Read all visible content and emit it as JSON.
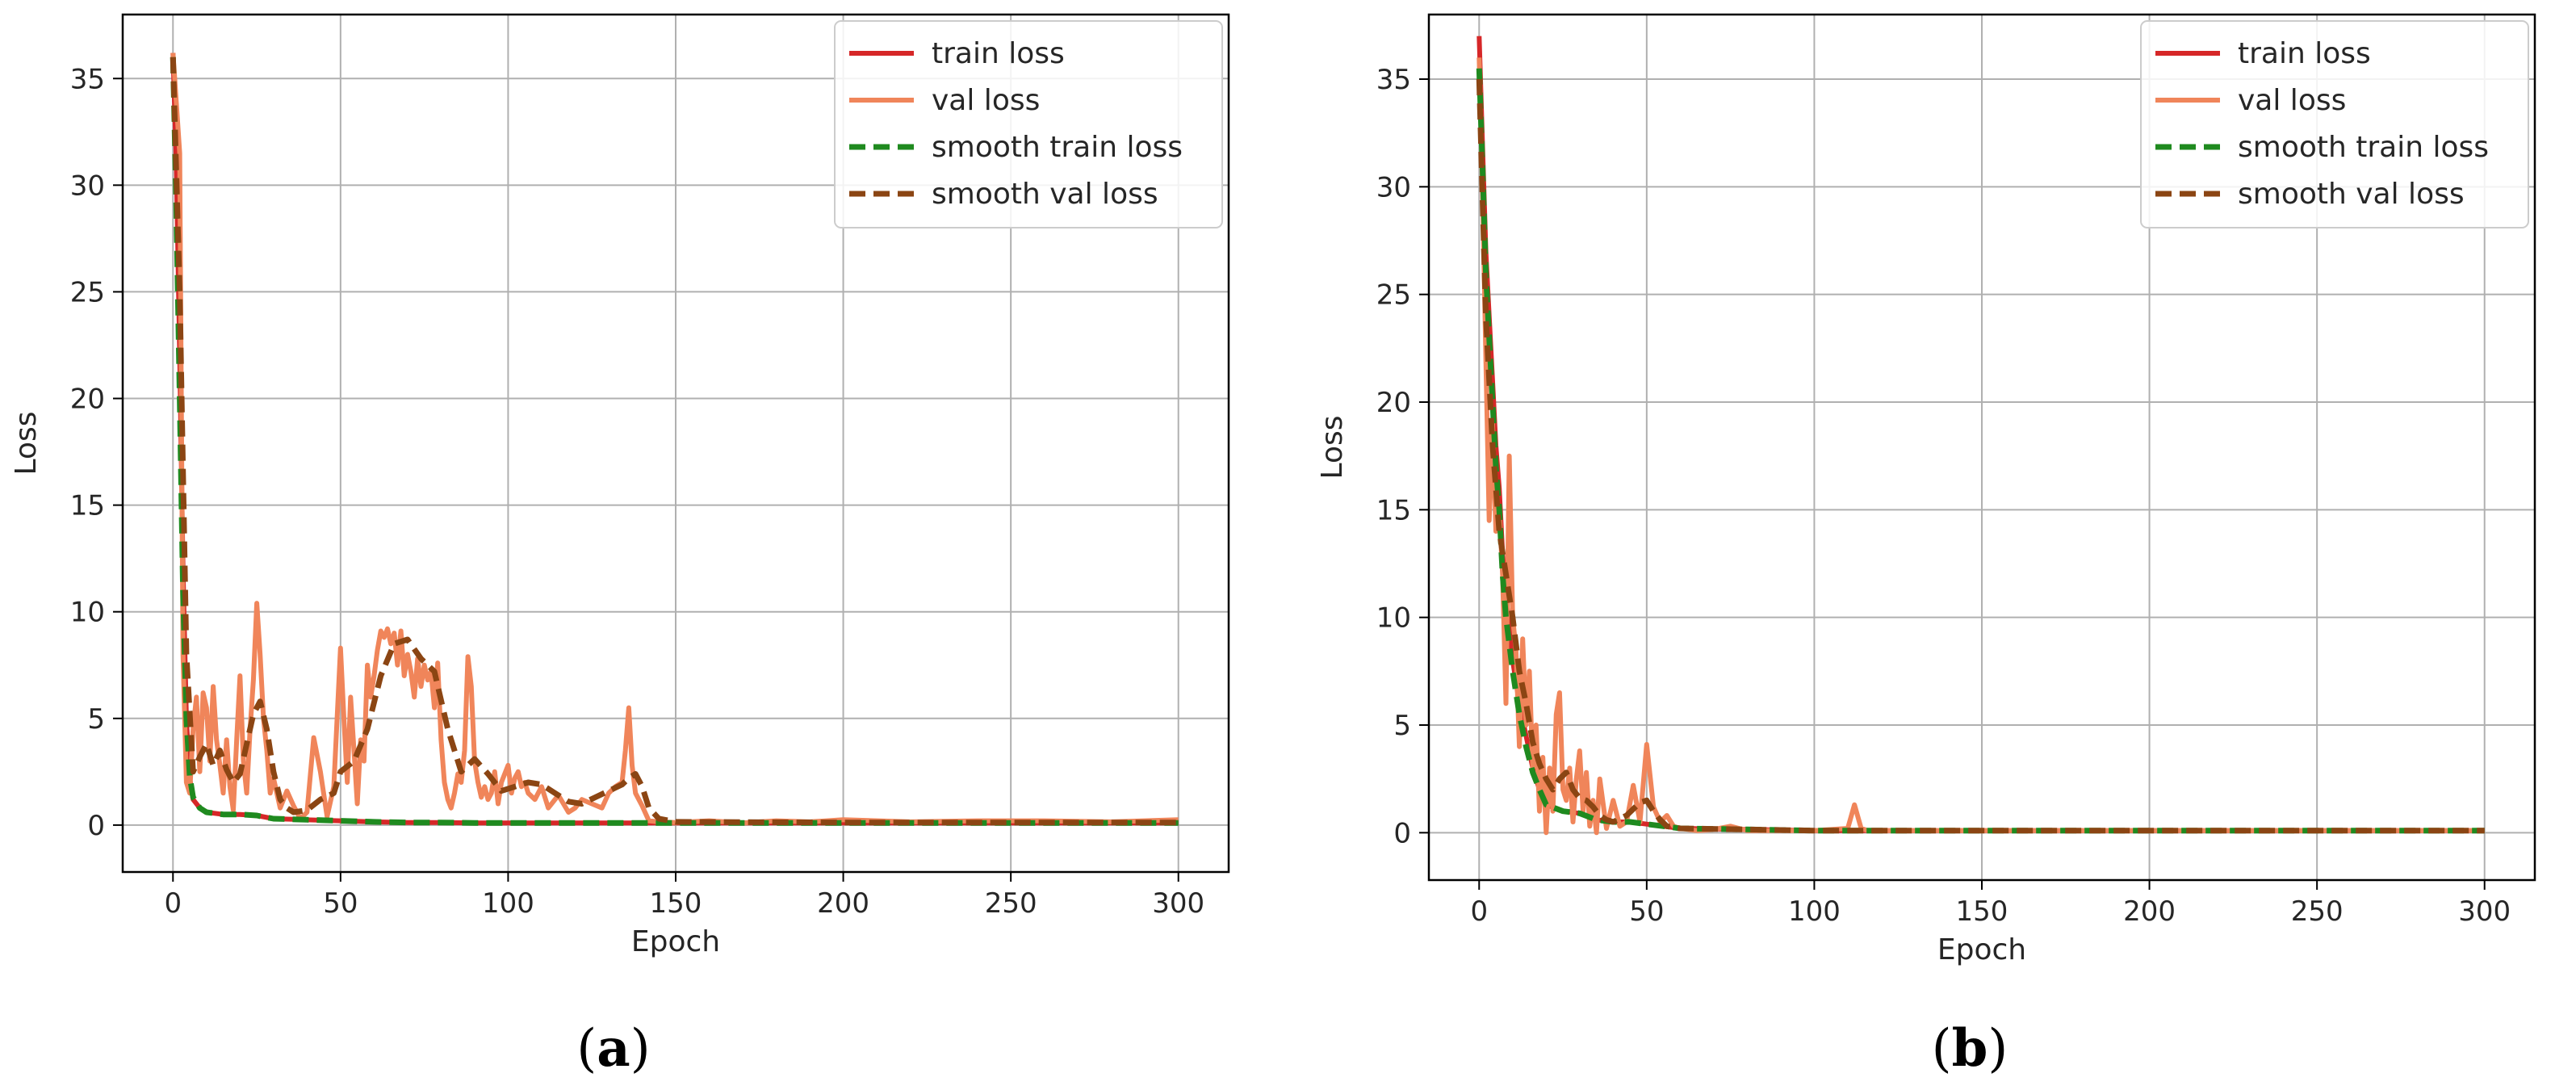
{
  "figure": {
    "captions": [
      "(a)",
      "(b)"
    ],
    "caption_letters": [
      "a",
      "b"
    ]
  },
  "chart_data": [
    {
      "type": "line",
      "panel": "(a)",
      "xlabel": "Epoch",
      "ylabel": "Loss",
      "xlim": [
        -15,
        315
      ],
      "ylim": [
        -2.2,
        38
      ],
      "xticks": [
        0,
        50,
        100,
        150,
        200,
        250,
        300
      ],
      "yticks": [
        0,
        5,
        10,
        15,
        20,
        25,
        30,
        35
      ],
      "grid": true,
      "legend_placement": "top-right",
      "series": [
        {
          "name": "train loss",
          "color": "#d62728",
          "style": "solid",
          "x": [
            0,
            1,
            2,
            3,
            4,
            5,
            6,
            8,
            10,
            15,
            20,
            25,
            30,
            40,
            50,
            60,
            70,
            80,
            90,
            100,
            120,
            140,
            150,
            200,
            250,
            300
          ],
          "y": [
            36.2,
            31,
            22,
            12,
            5,
            2.2,
            1.2,
            0.8,
            0.6,
            0.5,
            0.5,
            0.45,
            0.3,
            0.25,
            0.2,
            0.15,
            0.12,
            0.12,
            0.1,
            0.1,
            0.1,
            0.1,
            0.1,
            0.1,
            0.1,
            0.1
          ]
        },
        {
          "name": "val loss",
          "color": "#f0855a",
          "style": "solid",
          "x": [
            0,
            2,
            3,
            4,
            5,
            6,
            7,
            8,
            9,
            10,
            11,
            12,
            13,
            14,
            15,
            16,
            17,
            18,
            19,
            20,
            21,
            22,
            23,
            24,
            25,
            26,
            27,
            28,
            29,
            30,
            32,
            34,
            36,
            38,
            40,
            42,
            44,
            46,
            48,
            50,
            51,
            52,
            53,
            54,
            55,
            56,
            57,
            58,
            59,
            60,
            61,
            62,
            63,
            64,
            65,
            66,
            67,
            68,
            69,
            70,
            71,
            72,
            73,
            74,
            75,
            76,
            77,
            78,
            79,
            80,
            81,
            82,
            83,
            84,
            85,
            86,
            87,
            88,
            89,
            90,
            91,
            92,
            93,
            94,
            95,
            96,
            97,
            98,
            100,
            101,
            102,
            103,
            104,
            105,
            106,
            108,
            110,
            112,
            115,
            118,
            120,
            122,
            125,
            128,
            130,
            132,
            134,
            135,
            136,
            137,
            138,
            140,
            142,
            145,
            150,
            160,
            170,
            180,
            190,
            200,
            220,
            240,
            260,
            280,
            300
          ],
          "y": [
            36.2,
            31.5,
            8,
            2,
            1.5,
            4.5,
            6,
            2.5,
            6.2,
            5.5,
            3,
            6.5,
            4,
            2.8,
            1.5,
            4,
            1.8,
            0.7,
            4,
            7,
            3,
            1.5,
            4.5,
            6.8,
            10.4,
            8,
            5,
            3.5,
            1.5,
            2.2,
            0.8,
            1.6,
            0.9,
            0.3,
            0.6,
            4.1,
            2.5,
            0.4,
            1.8,
            8.3,
            5,
            2,
            6,
            3.5,
            1,
            4,
            3,
            7.5,
            6,
            7,
            8.2,
            9.1,
            8.8,
            9.2,
            8.5,
            9,
            7.5,
            9.1,
            7,
            8,
            7.2,
            6,
            7.8,
            6.5,
            7.5,
            6.8,
            7.2,
            5.5,
            7.6,
            4,
            2,
            1.2,
            0.8,
            1.5,
            2.4,
            2,
            3.5,
            7.9,
            6.5,
            3,
            2,
            1.3,
            1.8,
            1.2,
            1.5,
            2.5,
            1,
            2,
            2.8,
            1.5,
            2.2,
            2.5,
            1.8,
            2,
            1.5,
            1.2,
            1.8,
            0.8,
            1.4,
            0.6,
            0.8,
            1.2,
            1,
            0.8,
            1.5,
            1.8,
            2,
            3.5,
            5.5,
            2.8,
            1.5,
            0.9,
            0.2,
            0.15,
            0.12,
            0.2,
            0.1,
            0.2,
            0.15,
            0.25,
            0.15,
            0.2,
            0.2,
            0.15,
            0.25
          ]
        },
        {
          "name": "smooth train loss",
          "color": "#1f8a1f",
          "style": "dashed",
          "x": [
            0,
            1,
            2,
            3,
            4,
            5,
            6,
            8,
            10,
            15,
            20,
            25,
            30,
            40,
            50,
            60,
            70,
            80,
            90,
            100,
            120,
            140,
            150,
            200,
            250,
            300
          ],
          "y": [
            36,
            29,
            20,
            11,
            5,
            2.3,
            1.3,
            0.8,
            0.6,
            0.5,
            0.5,
            0.45,
            0.3,
            0.25,
            0.2,
            0.15,
            0.12,
            0.12,
            0.1,
            0.1,
            0.1,
            0.1,
            0.1,
            0.1,
            0.1,
            0.1
          ]
        },
        {
          "name": "smooth val loss",
          "color": "#8b4513",
          "style": "dashed",
          "x": [
            0,
            2,
            4,
            6,
            8,
            10,
            12,
            14,
            16,
            18,
            20,
            22,
            24,
            26,
            28,
            30,
            32,
            34,
            36,
            40,
            44,
            48,
            50,
            54,
            58,
            62,
            66,
            70,
            74,
            78,
            82,
            86,
            90,
            94,
            98,
            102,
            106,
            110,
            114,
            118,
            122,
            126,
            130,
            134,
            136,
            138,
            140,
            142,
            145,
            150,
            200,
            250,
            300
          ],
          "y": [
            36,
            25,
            8,
            2.5,
            3.2,
            3.8,
            2.8,
            3.5,
            2.6,
            2,
            2.4,
            3.8,
            5.2,
            5.8,
            4.5,
            2.5,
            1.2,
            0.8,
            0.6,
            0.7,
            1.2,
            1.5,
            2.5,
            3,
            4.5,
            7,
            8.5,
            8.7,
            7.8,
            7.2,
            4.5,
            2.5,
            3.1,
            2.4,
            1.6,
            1.8,
            2,
            1.9,
            1.5,
            1.1,
            1,
            1.3,
            1.6,
            1.9,
            2.2,
            2.4,
            1.8,
            0.8,
            0.3,
            0.15,
            0.12,
            0.12,
            0.12
          ]
        }
      ]
    },
    {
      "type": "line",
      "panel": "(b)",
      "xlabel": "Epoch",
      "ylabel": "Loss",
      "xlim": [
        -15,
        315
      ],
      "ylim": [
        -2.2,
        38
      ],
      "xticks": [
        0,
        50,
        100,
        150,
        200,
        250,
        300
      ],
      "yticks": [
        0,
        5,
        10,
        15,
        20,
        25,
        30,
        35
      ],
      "grid": true,
      "legend_placement": "top-right",
      "series": [
        {
          "name": "train loss",
          "color": "#d62728",
          "style": "solid",
          "x": [
            0,
            1,
            2,
            3,
            4,
            5,
            6,
            7,
            8,
            10,
            12,
            14,
            16,
            18,
            20,
            25,
            30,
            35,
            40,
            45,
            50,
            55,
            60,
            80,
            100,
            150,
            200,
            250,
            300
          ],
          "y": [
            37,
            32,
            27,
            24,
            21,
            18,
            16,
            13,
            11,
            8,
            6,
            4.5,
            3,
            2,
            1.3,
            1,
            0.9,
            0.6,
            0.5,
            0.5,
            0.4,
            0.3,
            0.2,
            0.15,
            0.1,
            0.1,
            0.1,
            0.1,
            0.1
          ]
        },
        {
          "name": "val loss",
          "color": "#f0855a",
          "style": "solid",
          "x": [
            0,
            1,
            2,
            3,
            4,
            5,
            6,
            7,
            8,
            9,
            10,
            11,
            12,
            13,
            14,
            15,
            16,
            17,
            18,
            19,
            20,
            21,
            22,
            23,
            24,
            25,
            26,
            27,
            28,
            29,
            30,
            31,
            32,
            33,
            34,
            35,
            36,
            38,
            40,
            42,
            44,
            46,
            48,
            50,
            52,
            54,
            56,
            58,
            60,
            65,
            70,
            75,
            80,
            90,
            100,
            110,
            112,
            114,
            116,
            120,
            150,
            200,
            250,
            300
          ],
          "y": [
            36,
            30,
            22,
            14.5,
            19,
            14,
            15,
            12,
            6,
            17.5,
            10,
            8.5,
            4,
            9,
            5,
            7.5,
            3,
            5,
            1,
            3.5,
            0,
            3,
            1,
            5.5,
            6.5,
            2,
            1.5,
            3,
            0.5,
            2.5,
            3.8,
            1,
            2.8,
            0.3,
            1.5,
            0,
            2.5,
            0.2,
            1.5,
            0.3,
            0.5,
            2.2,
            0.5,
            4.1,
            1.2,
            0.5,
            0.8,
            0.3,
            0.2,
            0.1,
            0.15,
            0.3,
            0.1,
            0.1,
            0.1,
            0.2,
            1.3,
            0.2,
            0.1,
            0.1,
            0.1,
            0.1,
            0.1,
            0.1
          ]
        },
        {
          "name": "smooth train loss",
          "color": "#1f8a1f",
          "style": "dashed",
          "x": [
            0,
            1,
            2,
            3,
            4,
            5,
            6,
            7,
            8,
            10,
            12,
            14,
            16,
            18,
            20,
            25,
            30,
            35,
            40,
            45,
            50,
            55,
            60,
            80,
            100,
            150,
            200,
            250,
            300
          ],
          "y": [
            35.5,
            31,
            26,
            23,
            20,
            17,
            15,
            12,
            10,
            7.5,
            5.5,
            4,
            2.8,
            2,
            1.3,
            1,
            0.9,
            0.6,
            0.5,
            0.5,
            0.4,
            0.3,
            0.2,
            0.15,
            0.1,
            0.1,
            0.1,
            0.1,
            0.1
          ]
        },
        {
          "name": "smooth val loss",
          "color": "#8b4513",
          "style": "dashed",
          "x": [
            0,
            2,
            4,
            6,
            8,
            10,
            12,
            14,
            16,
            18,
            20,
            22,
            24,
            26,
            28,
            30,
            32,
            34,
            36,
            38,
            40,
            44,
            48,
            50,
            52,
            54,
            56,
            60,
            80,
            100,
            150,
            200,
            250,
            300
          ],
          "y": [
            35,
            24,
            18,
            14,
            12,
            10,
            7.5,
            6,
            4.2,
            3.2,
            2.5,
            2,
            2.5,
            2.8,
            2,
            1.6,
            1.5,
            1.2,
            0.8,
            0.6,
            0.5,
            0.8,
            1.4,
            1.5,
            1,
            0.6,
            0.3,
            0.2,
            0.15,
            0.1,
            0.1,
            0.1,
            0.1,
            0.1
          ]
        }
      ]
    }
  ]
}
